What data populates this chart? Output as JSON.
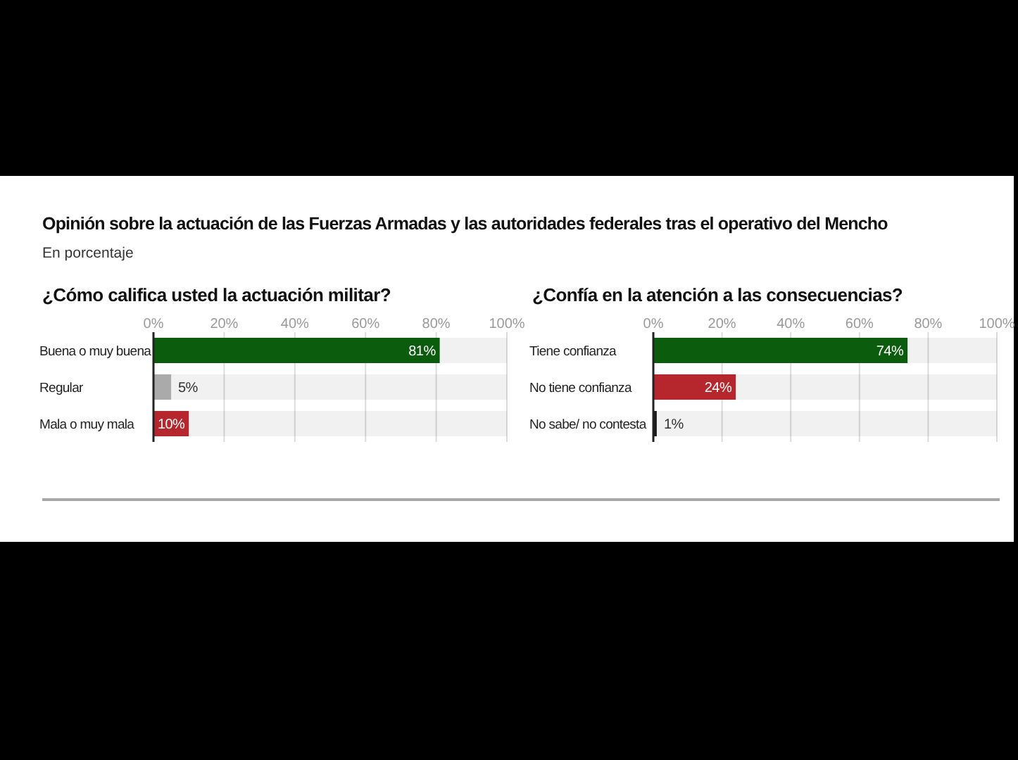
{
  "chart_data": [
    {
      "type": "other",
      "title": "Opinión sobre la actuación de las Fuerzas Armadas y las autoridades federales tras el operativo del Mencho",
      "subtitle": "En porcentaje"
    },
    {
      "type": "bar",
      "orientation": "horizontal",
      "title": "¿Cómo califica usted la actuación militar?",
      "categories": [
        "Buena o muy buena",
        "Regular",
        "Mala o muy mala"
      ],
      "values": [
        81,
        5,
        10
      ],
      "colors": [
        "#0b5c0d",
        "#aaaaaa",
        "#b5272d"
      ],
      "value_labels": [
        "81%",
        "5%",
        "10%"
      ],
      "xlim": [
        0,
        100
      ],
      "xticks": [
        {
          "value": 0,
          "label": "0%"
        },
        {
          "value": 20,
          "label": "20%"
        },
        {
          "value": 40,
          "label": "40%"
        },
        {
          "value": 60,
          "label": "60%"
        },
        {
          "value": 80,
          "label": "80%"
        },
        {
          "value": 100,
          "label": "100%"
        }
      ],
      "grid": "x"
    },
    {
      "type": "bar",
      "orientation": "horizontal",
      "title": "¿Confía en la atención a las consecuencias?",
      "categories": [
        "Tiene confianza",
        "No tiene confianza",
        "No sabe/ no contesta"
      ],
      "values": [
        74,
        24,
        1
      ],
      "colors": [
        "#0b5c0d",
        "#b5272d",
        "#1a1a1a"
      ],
      "value_labels": [
        "74%",
        "24%",
        "1%"
      ],
      "xlim": [
        0,
        100
      ],
      "xticks": [
        {
          "value": 0,
          "label": "0%"
        },
        {
          "value": 20,
          "label": "20%"
        },
        {
          "value": 40,
          "label": "40%"
        },
        {
          "value": 60,
          "label": "60%"
        },
        {
          "value": 80,
          "label": "80%"
        },
        {
          "value": 100,
          "label": "100%"
        }
      ],
      "grid": "x"
    }
  ]
}
